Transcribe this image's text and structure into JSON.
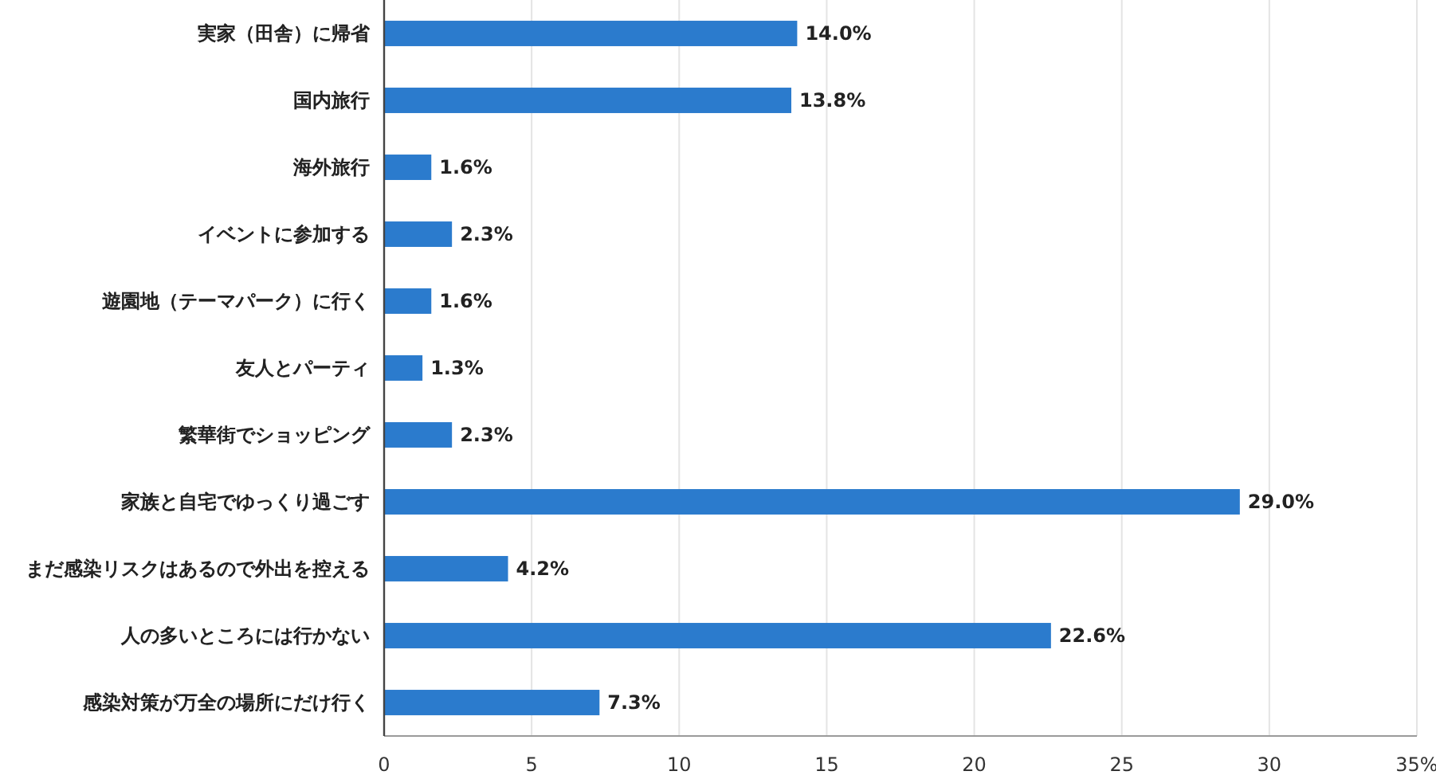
{
  "chart_data": {
    "type": "bar",
    "orientation": "horizontal",
    "categories": [
      "実家（田舎）に帰省",
      "国内旅行",
      "海外旅行",
      "イベントに参加する",
      "遊園地（テーマパーク）に行く",
      "友人とパーティ",
      "繁華街でショッピング",
      "家族と自宅でゆっくり過ごす",
      "まだ感染リスクはあるので外出を控える",
      "人の多いところには行かない",
      "感染対策が万全の場所にだけ行く"
    ],
    "values": [
      14.0,
      13.8,
      1.6,
      2.3,
      1.6,
      1.3,
      2.3,
      29.0,
      4.2,
      22.6,
      7.3
    ],
    "value_labels": [
      "14.0%",
      "13.8%",
      "1.6%",
      "2.3%",
      "1.6%",
      "1.3%",
      "2.3%",
      "29.0%",
      "4.2%",
      "22.6%",
      "7.3%"
    ],
    "color": "#2b7bcd",
    "xlim": [
      0,
      35
    ],
    "xticks": [
      0,
      5,
      10,
      15,
      20,
      25,
      30,
      {
        "value": 35,
        "label": "35%"
      }
    ],
    "grid": "x"
  }
}
